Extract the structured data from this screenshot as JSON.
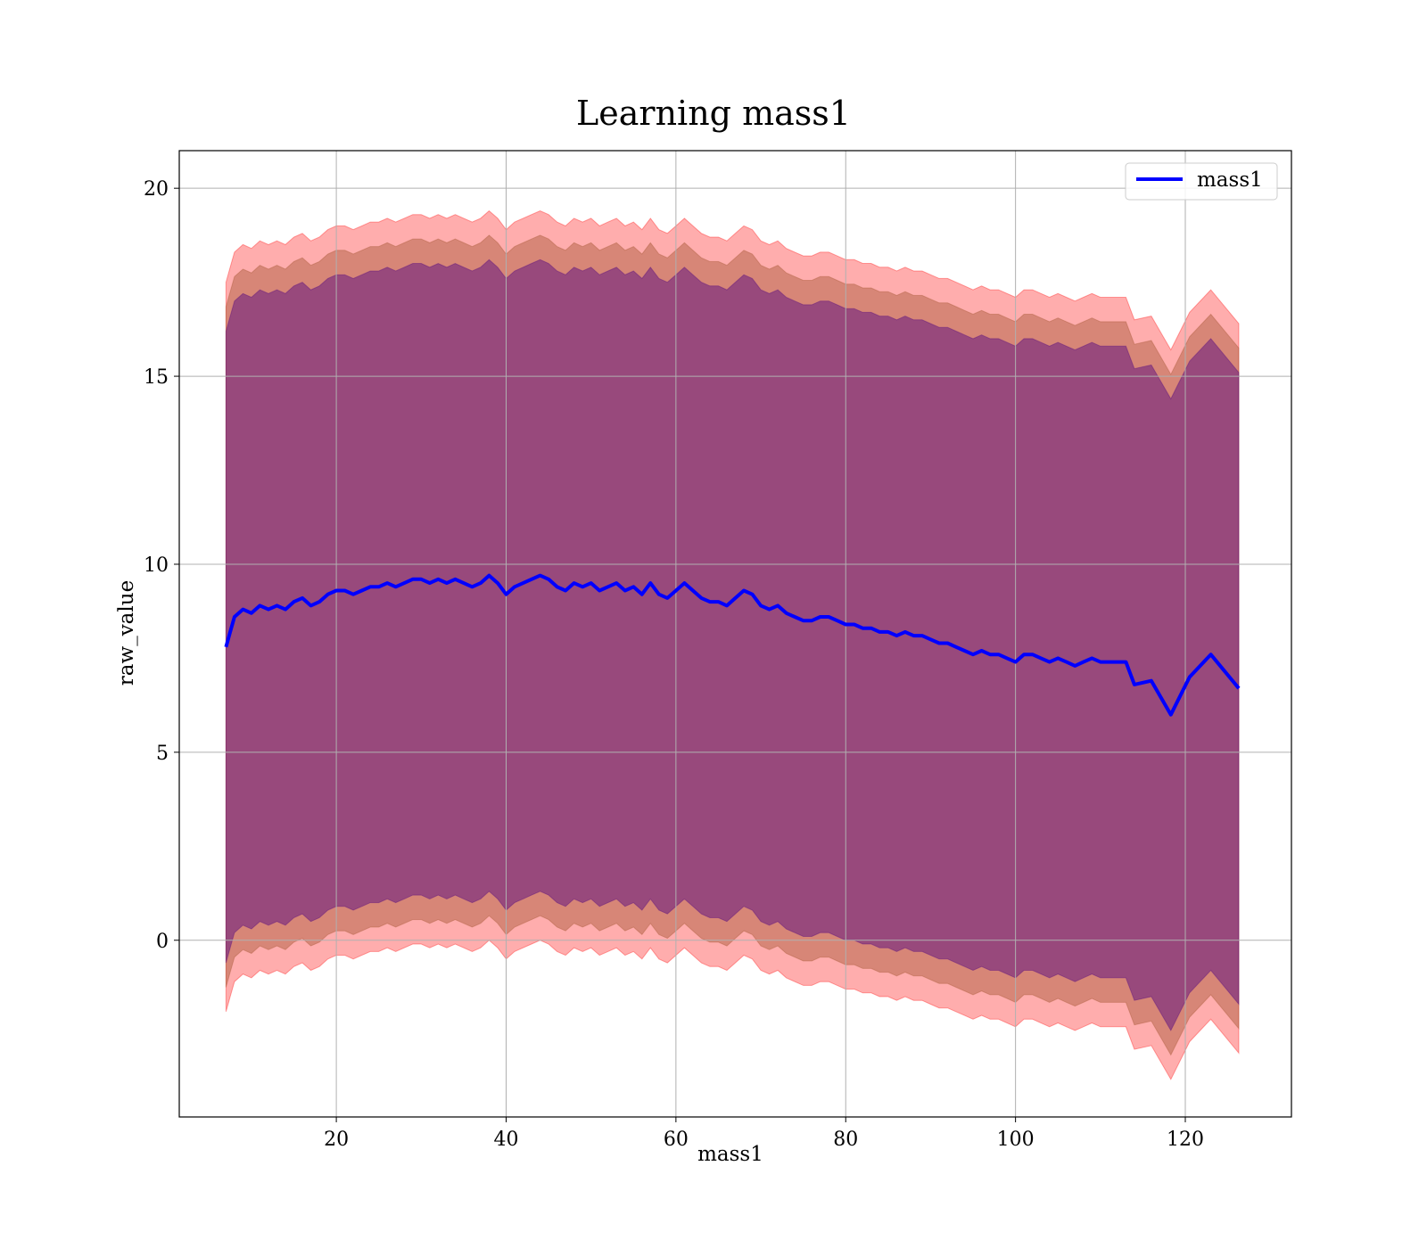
{
  "chart_data": {
    "type": "area",
    "title": "Learning mass1",
    "xlabel": "mass1",
    "ylabel": "raw_value",
    "xlim": [
      1.5,
      132.5
    ],
    "ylim": [
      -4.7,
      21
    ],
    "xticks": [
      20,
      40,
      60,
      80,
      100,
      120
    ],
    "yticks": [
      0,
      5,
      10,
      15,
      20
    ],
    "grid": true,
    "legend": {
      "position": "top-right",
      "entries": [
        "mass1"
      ]
    },
    "colors": {
      "line": "#0000ff",
      "band_outer": "#ff0000",
      "band_middle": "#a0522d",
      "band_inner": "#4b0082",
      "grid": "#b0b0b0"
    },
    "series": [
      {
        "name": "mass1",
        "x": [
          7,
          7.5,
          8,
          9,
          10,
          11,
          12,
          13,
          14,
          15,
          16,
          17,
          18,
          19,
          20,
          21,
          22,
          23,
          24,
          25,
          26,
          27,
          28,
          29,
          30,
          31,
          32,
          33,
          34,
          35,
          36,
          37,
          38,
          39,
          40,
          41,
          42,
          43,
          44,
          45,
          46,
          47,
          48,
          49,
          50,
          51,
          52,
          53,
          54,
          55,
          56,
          57,
          58,
          59,
          60,
          61,
          62,
          63,
          64,
          65,
          66,
          67,
          68,
          69,
          70,
          71,
          72,
          73,
          74,
          75,
          76,
          77,
          78,
          79,
          80,
          81,
          82,
          83,
          84,
          85,
          86,
          87,
          88,
          89,
          90,
          91,
          92,
          93,
          94,
          95,
          96,
          97,
          98,
          99,
          100,
          101,
          102,
          103,
          104,
          105,
          106,
          107,
          108,
          109,
          110,
          111,
          112,
          113,
          114,
          116,
          118.3,
          120.5,
          123,
          126.3
        ],
        "values": [
          7.8,
          8.2,
          8.6,
          8.8,
          8.7,
          8.9,
          8.8,
          8.9,
          8.8,
          9.0,
          9.1,
          8.9,
          9.0,
          9.2,
          9.3,
          9.3,
          9.2,
          9.3,
          9.4,
          9.4,
          9.5,
          9.4,
          9.5,
          9.6,
          9.6,
          9.5,
          9.6,
          9.5,
          9.6,
          9.5,
          9.4,
          9.5,
          9.7,
          9.5,
          9.2,
          9.4,
          9.5,
          9.6,
          9.7,
          9.6,
          9.4,
          9.3,
          9.5,
          9.4,
          9.5,
          9.3,
          9.4,
          9.5,
          9.3,
          9.4,
          9.2,
          9.5,
          9.2,
          9.1,
          9.3,
          9.5,
          9.3,
          9.1,
          9.0,
          9.0,
          8.9,
          9.1,
          9.3,
          9.2,
          8.9,
          8.8,
          8.9,
          8.7,
          8.6,
          8.5,
          8.5,
          8.6,
          8.6,
          8.5,
          8.4,
          8.4,
          8.3,
          8.3,
          8.2,
          8.2,
          8.1,
          8.2,
          8.1,
          8.1,
          8.0,
          7.9,
          7.9,
          7.8,
          7.7,
          7.6,
          7.7,
          7.6,
          7.6,
          7.5,
          7.4,
          7.6,
          7.6,
          7.5,
          7.4,
          7.5,
          7.4,
          7.3,
          7.4,
          7.5,
          7.4,
          7.4,
          7.4,
          7.4,
          6.8,
          6.9,
          6.0,
          7.0,
          7.6,
          6.7
        ]
      }
    ],
    "bands": [
      {
        "role": "outer",
        "half_width_start": 9.7,
        "half_width_end": 9.7
      },
      {
        "role": "middle",
        "half_width_start": 9.05,
        "half_width_end": 9.05
      },
      {
        "role": "inner",
        "half_width_start": 8.4,
        "half_width_end": 8.4
      }
    ]
  }
}
